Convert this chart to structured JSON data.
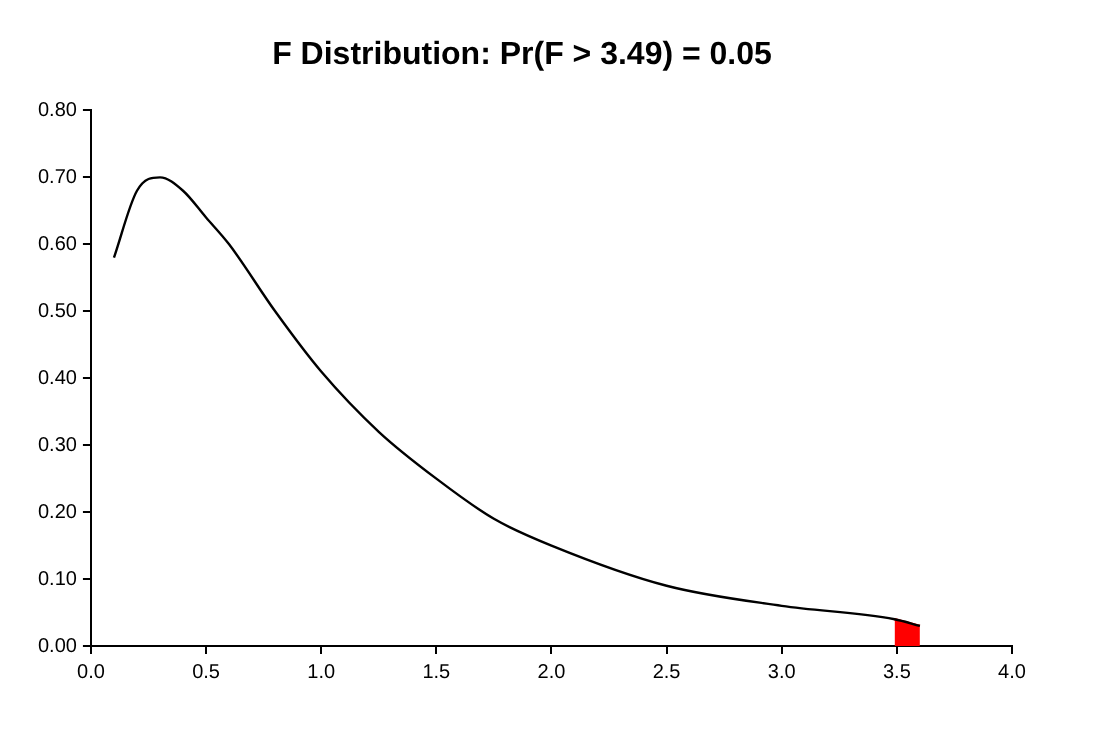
{
  "chart_data": {
    "type": "line",
    "title": "F Distribution: Pr(F > 3.49) = 0.05",
    "series": [
      {
        "type": "line",
        "color": "#000000",
        "x": [
          0.1,
          0.2,
          0.3,
          0.4,
          0.5,
          0.6,
          0.8,
          1.0,
          1.25,
          1.5,
          1.75,
          2.0,
          2.5,
          3.0,
          3.49,
          3.6
        ],
        "values": [
          0.58,
          0.68,
          0.7,
          0.68,
          0.64,
          0.6,
          0.5,
          0.41,
          0.32,
          0.25,
          0.19,
          0.15,
          0.09,
          0.06,
          0.04,
          0.03
        ]
      },
      {
        "type": "area",
        "color": "#ff0000",
        "x": [
          3.49,
          3.6
        ],
        "values": [
          0.04,
          0.03
        ]
      }
    ],
    "xlim": [
      0,
      4
    ],
    "xticks": [
      {
        "value": 0,
        "label": "0.0"
      },
      {
        "value": 0.5,
        "label": "0.5"
      },
      {
        "value": 1,
        "label": "1.0"
      },
      {
        "value": 1.5,
        "label": "1.5"
      },
      {
        "value": 2,
        "label": "2.0"
      },
      {
        "value": 2.5,
        "label": "2.5"
      },
      {
        "value": 3,
        "label": "3.0"
      },
      {
        "value": 3.5,
        "label": "3.5"
      },
      {
        "value": 4,
        "label": "4.0"
      }
    ],
    "ylim": [
      0,
      0.8
    ],
    "yticks": [
      {
        "value": 0,
        "label": "0.00"
      },
      {
        "value": 0.1,
        "label": "0.10"
      },
      {
        "value": 0.2,
        "label": "0.20"
      },
      {
        "value": 0.3,
        "label": "0.30"
      },
      {
        "value": 0.4,
        "label": "0.40"
      },
      {
        "value": 0.5,
        "label": "0.50"
      },
      {
        "value": 0.6,
        "label": "0.60"
      },
      {
        "value": 0.7,
        "label": "0.70"
      },
      {
        "value": 0.8,
        "label": "0.80"
      }
    ],
    "grid": false,
    "legend": false,
    "marker": "none",
    "line_style": "solid"
  }
}
